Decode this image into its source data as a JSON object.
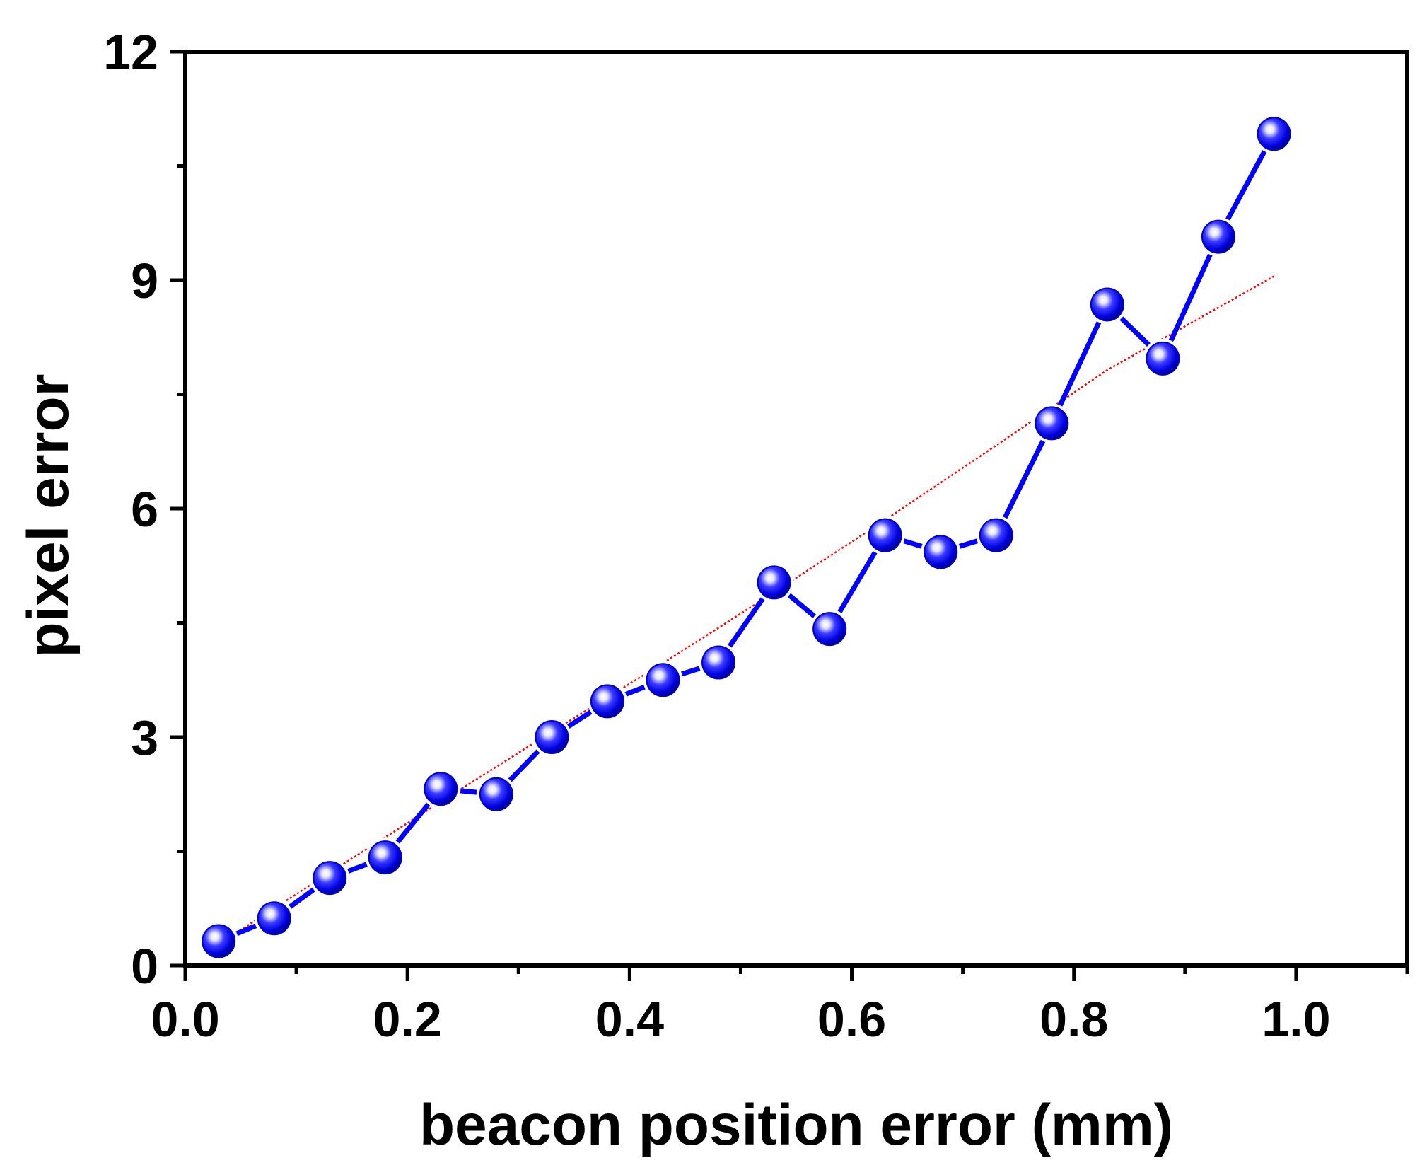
{
  "chart_data": {
    "type": "line",
    "title": "",
    "xlabel": "beacon position error (mm)",
    "ylabel": "pixel error",
    "xlim": [
      0.0,
      1.1
    ],
    "ylim": [
      0,
      12
    ],
    "xticks": [
      0.0,
      0.2,
      0.4,
      0.6,
      0.8,
      1.0
    ],
    "xtick_labels": [
      "0.0",
      "0.2",
      "0.4",
      "0.6",
      "0.8",
      "1.0"
    ],
    "yticks": [
      0,
      3,
      6,
      9,
      12
    ],
    "ytick_labels": [
      "0",
      "3",
      "6",
      "9",
      "12"
    ],
    "grid": false,
    "legend": "none",
    "series": [
      {
        "style": "line-with-markers",
        "color": "#0000ff",
        "x": [
          0.03,
          0.08,
          0.13,
          0.18,
          0.23,
          0.28,
          0.33,
          0.38,
          0.43,
          0.48,
          0.53,
          0.58,
          0.63,
          0.68,
          0.73,
          0.78,
          0.83,
          0.88,
          0.93,
          0.98
        ],
        "y": [
          0.32,
          0.62,
          1.15,
          1.42,
          2.32,
          2.25,
          3.0,
          3.47,
          3.75,
          3.98,
          5.03,
          4.42,
          5.65,
          5.43,
          5.65,
          7.12,
          8.68,
          7.97,
          9.57,
          10.92
        ]
      },
      {
        "style": "dotted-fit",
        "color": "#ff0000",
        "x": [
          0.03,
          0.13,
          0.23,
          0.33,
          0.43,
          0.53,
          0.63,
          0.73,
          0.83,
          0.98
        ],
        "y": [
          0.28,
          1.22,
          2.15,
          3.07,
          3.97,
          4.9,
          5.85,
          6.83,
          7.82,
          9.05
        ]
      }
    ]
  }
}
